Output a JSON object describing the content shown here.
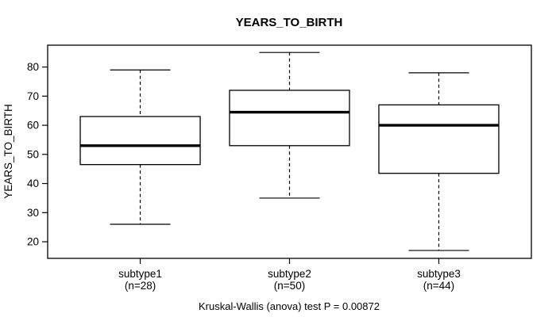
{
  "chart_data": {
    "type": "boxplot",
    "title": "YEARS_TO_BIRTH",
    "ylabel": "YEARS_TO_BIRTH",
    "footer": "Kruskal-Wallis (anova) test P = 0.00872",
    "categories": [
      "subtype1",
      "subtype2",
      "subtype3"
    ],
    "category_sublabels": [
      "(n=28)",
      "(n=50)",
      "(n=44)"
    ],
    "series": [
      {
        "name": "subtype1",
        "label": "(n=28)",
        "n": 28,
        "min": 26,
        "q1": 46.5,
        "median": 53,
        "q3": 63,
        "max": 79
      },
      {
        "name": "subtype2",
        "label": "(n=50)",
        "n": 50,
        "min": 35,
        "q1": 53,
        "median": 64.5,
        "q3": 72,
        "max": 85
      },
      {
        "name": "subtype3",
        "label": "(n=44)",
        "n": 44,
        "min": 17,
        "q1": 43.5,
        "median": 60,
        "q3": 67,
        "max": 78
      }
    ],
    "yticks": [
      20,
      30,
      40,
      50,
      60,
      70,
      80
    ],
    "ylim": [
      14.3,
      87.5
    ],
    "grid": false,
    "legend": false,
    "colors": {
      "line": "#000000",
      "box_fill": "#ffffff",
      "background": "#ffffff"
    }
  }
}
